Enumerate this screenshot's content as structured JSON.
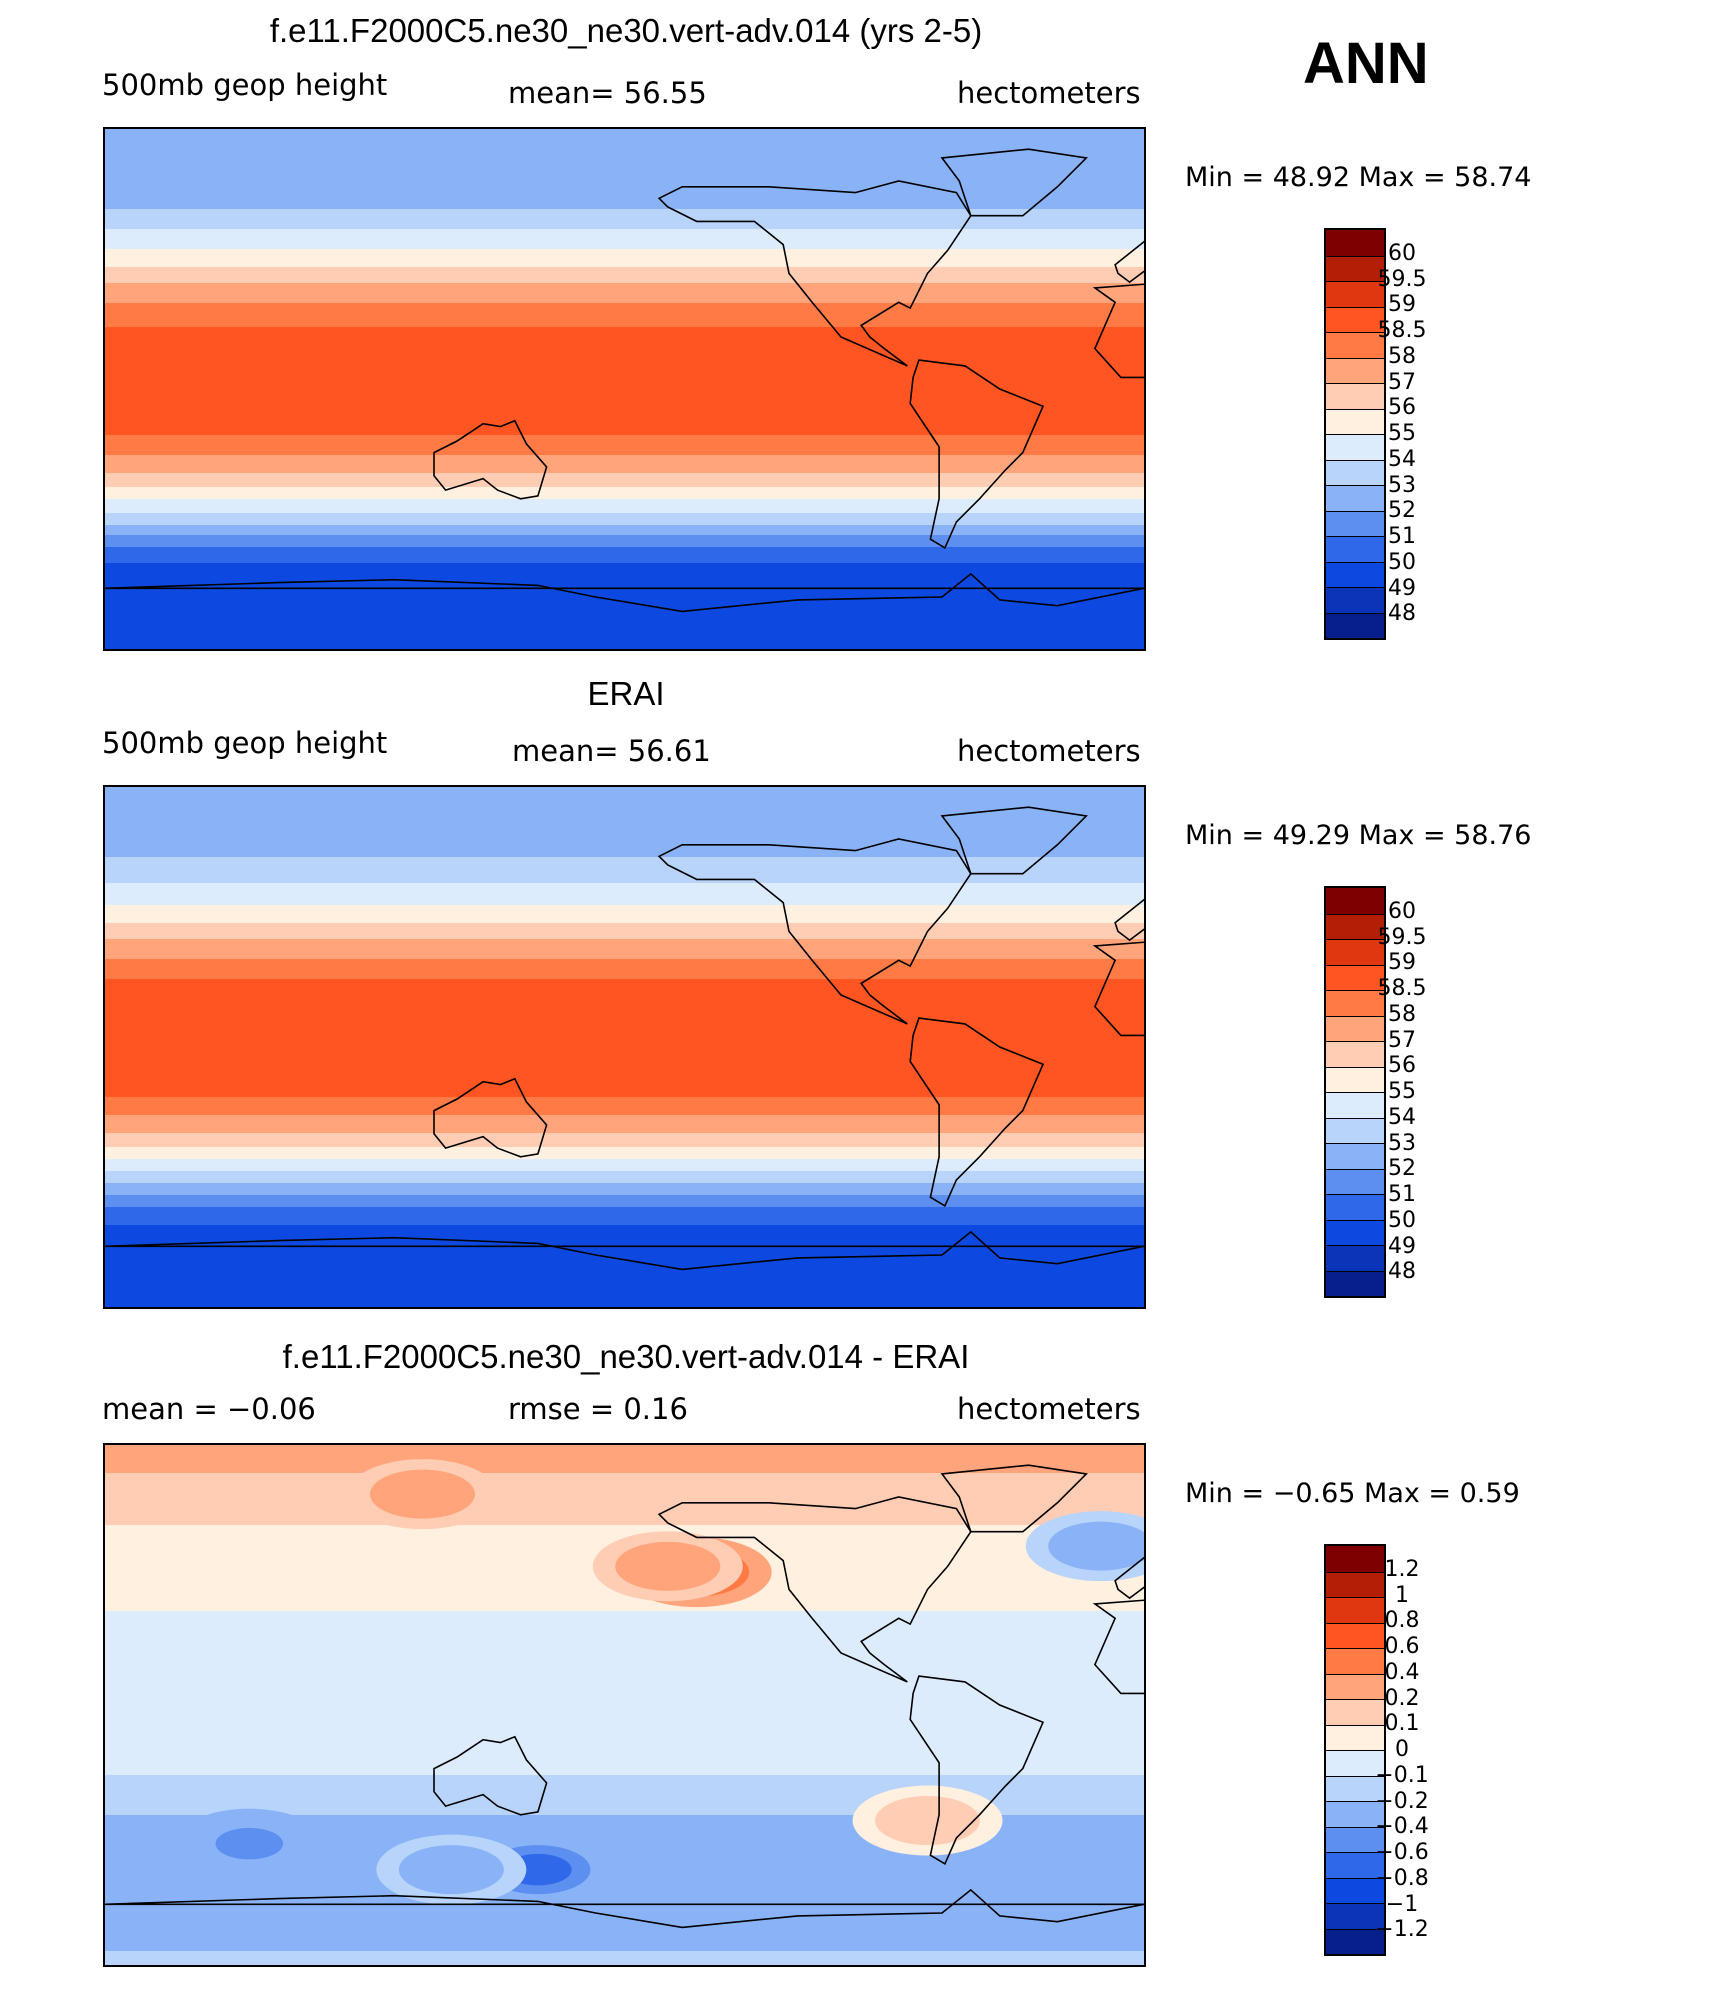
{
  "header": {
    "season": "ANN"
  },
  "panels": [
    {
      "id": "model",
      "title": "f.e11.F2000C5.ne30_ne30.vert-adv.014 (yrs 2-5)",
      "left_label": "500mb  geop  height",
      "center_label": "mean=   56.55",
      "right_label": "hectometers",
      "min_text": "Min  =    48.92  Max  =    58.74",
      "colorbar": {
        "labels": [
          "60",
          "59.5",
          "59",
          "58.5",
          "58",
          "57",
          "56",
          "55",
          "54",
          "53",
          "52",
          "51",
          "50",
          "49",
          "48"
        ],
        "colors": [
          "#7f0000",
          "#b31f06",
          "#e03710",
          "#ff5522",
          "#ff7a45",
          "#ffa47b",
          "#ffcdb3",
          "#fff0e0",
          "#dcecfc",
          "#b8d4fa",
          "#8ab3f7",
          "#5c8ff0",
          "#3068ea",
          "#0d48e0",
          "#0a35b8",
          "#061f8a"
        ]
      },
      "bands": [
        {
          "lat": 90,
          "value": 52.3
        },
        {
          "lat": 75,
          "value": 52.0
        },
        {
          "lat": 62,
          "value": 53.0
        },
        {
          "lat": 52,
          "value": 54.5
        },
        {
          "lat": 45,
          "value": 55.5
        },
        {
          "lat": 38,
          "value": 56.8
        },
        {
          "lat": 30,
          "value": 58.0
        },
        {
          "lat": 20,
          "value": 58.6
        },
        {
          "lat": 0,
          "value": 58.7
        },
        {
          "lat": -15,
          "value": 58.6
        },
        {
          "lat": -25,
          "value": 57.8
        },
        {
          "lat": -32,
          "value": 56.5
        },
        {
          "lat": -38,
          "value": 55.0
        },
        {
          "lat": -45,
          "value": 53.5
        },
        {
          "lat": -52,
          "value": 51.5
        },
        {
          "lat": -60,
          "value": 50.0
        },
        {
          "lat": -68,
          "value": 49.3
        },
        {
          "lat": -90,
          "value": 49.0
        }
      ]
    },
    {
      "id": "obs",
      "title": "ERAI",
      "left_label": "500mb  geop  height",
      "center_label": "mean=   56.61",
      "right_label": "hectometers",
      "min_text": "Min  =    49.29  Max  =    58.76",
      "colorbar": {
        "labels": [
          "60",
          "59.5",
          "59",
          "58.5",
          "58",
          "57",
          "56",
          "55",
          "54",
          "53",
          "52",
          "51",
          "50",
          "49",
          "48"
        ],
        "colors": [
          "#7f0000",
          "#b31f06",
          "#e03710",
          "#ff5522",
          "#ff7a45",
          "#ffa47b",
          "#ffcdb3",
          "#fff0e0",
          "#dcecfc",
          "#b8d4fa",
          "#8ab3f7",
          "#5c8ff0",
          "#3068ea",
          "#0d48e0",
          "#0a35b8",
          "#061f8a"
        ]
      },
      "bands": [
        {
          "lat": 90,
          "value": 52.2
        },
        {
          "lat": 75,
          "value": 52.3
        },
        {
          "lat": 62,
          "value": 53.3
        },
        {
          "lat": 52,
          "value": 54.6
        },
        {
          "lat": 45,
          "value": 55.6
        },
        {
          "lat": 38,
          "value": 56.9
        },
        {
          "lat": 30,
          "value": 58.1
        },
        {
          "lat": 20,
          "value": 58.7
        },
        {
          "lat": 0,
          "value": 58.75
        },
        {
          "lat": -15,
          "value": 58.7
        },
        {
          "lat": -25,
          "value": 57.9
        },
        {
          "lat": -32,
          "value": 56.6
        },
        {
          "lat": -38,
          "value": 55.1
        },
        {
          "lat": -45,
          "value": 53.6
        },
        {
          "lat": -52,
          "value": 51.7
        },
        {
          "lat": -60,
          "value": 50.1
        },
        {
          "lat": -68,
          "value": 49.5
        },
        {
          "lat": -90,
          "value": 49.3
        }
      ]
    },
    {
      "id": "diff",
      "title": "f.e11.F2000C5.ne30_ne30.vert-adv.014 - ERAI",
      "left_label": "mean  =    −0.06",
      "center_label": "rmse  =     0.16",
      "right_label": "hectometers",
      "min_text": "Min  =    −0.65  Max  =     0.59",
      "colorbar": {
        "labels": [
          "1.2",
          "1",
          "0.8",
          "0.6",
          "0.4",
          "0.2",
          "0.1",
          "0",
          "−0.1",
          "−0.2",
          "−0.4",
          "−0.6",
          "−0.8",
          "−1",
          "−1.2"
        ],
        "colors": [
          "#7f0000",
          "#b31f06",
          "#e03710",
          "#ff5522",
          "#ff7a45",
          "#ffa47b",
          "#ffcdb3",
          "#fff0e0",
          "#dcecfc",
          "#b8d4fa",
          "#8ab3f7",
          "#5c8ff0",
          "#3068ea",
          "#0d48e0",
          "#0a35b8",
          "#061f8a"
        ]
      },
      "bands": [
        {
          "lat": 90,
          "value": 0.25
        },
        {
          "lat": 70,
          "value": 0.15
        },
        {
          "lat": 55,
          "value": 0.05
        },
        {
          "lat": 40,
          "value": 0.05
        },
        {
          "lat": 25,
          "value": -0.05
        },
        {
          "lat": 0,
          "value": -0.05
        },
        {
          "lat": -20,
          "value": -0.08
        },
        {
          "lat": -35,
          "value": -0.15
        },
        {
          "lat": -45,
          "value": -0.3
        },
        {
          "lat": -55,
          "value": -0.35
        },
        {
          "lat": -65,
          "value": -0.2
        },
        {
          "lat": -75,
          "value": -0.3
        },
        {
          "lat": -90,
          "value": -0.15
        }
      ],
      "blobs": [
        {
          "lon": 205,
          "lat": 46,
          "value": 0.59
        },
        {
          "lon": 195,
          "lat": 48,
          "value": 0.3
        },
        {
          "lon": 150,
          "lat": -57,
          "value": -0.65
        },
        {
          "lon": 120,
          "lat": -57,
          "value": -0.4
        },
        {
          "lon": 50,
          "lat": -48,
          "value": -0.45
        },
        {
          "lon": 110,
          "lat": 73,
          "value": 0.3
        },
        {
          "lon": 345,
          "lat": 55,
          "value": -0.3
        },
        {
          "lon": 285,
          "lat": -40,
          "value": 0.15
        }
      ]
    }
  ]
}
